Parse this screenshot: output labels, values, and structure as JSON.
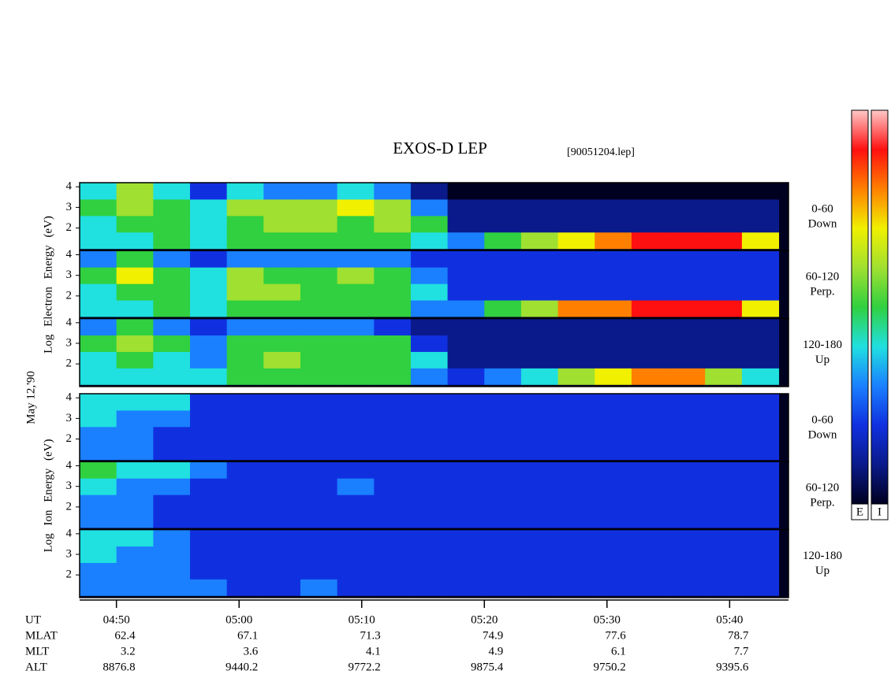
{
  "title": "EXOS-D LEP",
  "file_label": "[90051204.lep]",
  "date_label": "May 12,'90",
  "colorscale": [
    "#000020",
    "#0a1a8a",
    "#1030e0",
    "#1a80ff",
    "#20e0e0",
    "#30d040",
    "#a0e030",
    "#f0f000",
    "#ff8000",
    "#ff1010",
    "#ffc8c8"
  ],
  "colorbar_labels": [
    "E",
    "I"
  ],
  "chart_data": [
    {
      "type": "heatmap",
      "ylabel": "Log Electron Energy (eV)",
      "xlim": [
        47,
        104.8
      ],
      "ylim": [
        0.9,
        4.2
      ],
      "yticks": [
        2,
        3,
        4
      ],
      "x": [
        48.5,
        51.5,
        54.5,
        57.5,
        60.5,
        63.5,
        66.5,
        69.5,
        72.5,
        75.5,
        78.5,
        81.5,
        84.5,
        87.5,
        90.5,
        93.5,
        96.5,
        99.5,
        102.5
      ],
      "energy": [
        1.4,
        2.2,
        3.0,
        3.8
      ],
      "panels": [
        {
          "label": [
            "0-60",
            "Down"
          ],
          "z": [
            [
              4,
              4,
              5,
              4,
              5,
              5,
              5,
              5,
              5,
              4,
              3,
              5,
              6,
              7,
              8,
              9,
              9,
              9,
              7
            ],
            [
              4,
              5,
              5,
              4,
              5,
              6,
              6,
              5,
              6,
              5,
              1,
              1,
              1,
              1,
              1,
              1,
              1,
              1,
              1
            ],
            [
              5,
              6,
              5,
              4,
              6,
              6,
              6,
              7,
              6,
              3,
              1,
              1,
              1,
              1,
              1,
              1,
              1,
              1,
              1
            ],
            [
              4,
              6,
              4,
              2,
              4,
              3,
              3,
              4,
              3,
              1,
              0,
              0,
              0,
              0,
              0,
              0,
              0,
              0,
              0
            ]
          ]
        },
        {
          "label": [
            "60-120",
            "Perp."
          ],
          "z": [
            [
              4,
              4,
              5,
              4,
              5,
              5,
              5,
              5,
              5,
              3,
              3,
              5,
              6,
              8,
              8,
              9,
              9,
              9,
              7
            ],
            [
              4,
              5,
              5,
              4,
              6,
              6,
              5,
              5,
              5,
              4,
              2,
              2,
              2,
              2,
              2,
              2,
              2,
              2,
              2
            ],
            [
              5,
              7,
              5,
              4,
              6,
              5,
              5,
              6,
              5,
              3,
              2,
              2,
              2,
              2,
              2,
              2,
              2,
              2,
              2
            ],
            [
              3,
              5,
              3,
              2,
              3,
              3,
              3,
              3,
              3,
              2,
              2,
              2,
              2,
              2,
              2,
              2,
              2,
              2,
              2
            ]
          ]
        },
        {
          "label": [
            "120-180",
            "Up"
          ],
          "z": [
            [
              4,
              4,
              4,
              4,
              5,
              5,
              5,
              5,
              5,
              3,
              2,
              3,
              4,
              6,
              7,
              8,
              8,
              6,
              4
            ],
            [
              4,
              5,
              4,
              3,
              5,
              6,
              5,
              5,
              5,
              4,
              1,
              1,
              1,
              1,
              1,
              1,
              1,
              1,
              1
            ],
            [
              5,
              6,
              5,
              3,
              5,
              5,
              5,
              5,
              5,
              2,
              1,
              1,
              1,
              1,
              1,
              1,
              1,
              1,
              1
            ],
            [
              3,
              5,
              3,
              2,
              3,
              3,
              3,
              3,
              2,
              1,
              1,
              1,
              1,
              1,
              1,
              1,
              1,
              1,
              1
            ]
          ]
        }
      ]
    },
    {
      "type": "heatmap",
      "ylabel": "Log Ion Energy (eV)",
      "xlim": [
        47,
        104.8
      ],
      "ylim": [
        0.9,
        4.2
      ],
      "yticks": [
        2,
        3,
        4
      ],
      "xticks": [
        {
          "value": 50,
          "label": "04:50"
        },
        {
          "value": 60,
          "label": "05:00"
        },
        {
          "value": 70,
          "label": "05:10"
        },
        {
          "value": 80,
          "label": "05:20"
        },
        {
          "value": 90,
          "label": "05:30"
        },
        {
          "value": 100,
          "label": "05:40"
        }
      ],
      "x": [
        48.5,
        51.5,
        54.5,
        57.5,
        60.5,
        63.5,
        66.5,
        69.5,
        72.5,
        75.5,
        78.5,
        81.5,
        84.5,
        87.5,
        90.5,
        93.5,
        96.5,
        99.5,
        102.5
      ],
      "energy": [
        1.4,
        2.2,
        3.0,
        3.8
      ],
      "panels": [
        {
          "label": [
            "0-60",
            "Down"
          ],
          "z": [
            [
              3,
              3,
              2,
              2,
              2,
              2,
              2,
              2,
              2,
              2,
              2,
              2,
              2,
              2,
              2,
              2,
              2,
              2,
              2
            ],
            [
              3,
              3,
              2,
              2,
              2,
              2,
              2,
              2,
              2,
              2,
              2,
              2,
              2,
              2,
              2,
              2,
              2,
              2,
              2
            ],
            [
              4,
              3,
              3,
              2,
              2,
              2,
              2,
              2,
              2,
              2,
              2,
              2,
              2,
              2,
              2,
              2,
              2,
              2,
              2
            ],
            [
              4,
              4,
              4,
              2,
              2,
              2,
              2,
              2,
              2,
              2,
              2,
              2,
              2,
              2,
              2,
              2,
              2,
              2,
              2
            ]
          ]
        },
        {
          "label": [
            "60-120",
            "Perp."
          ],
          "z": [
            [
              3,
              3,
              2,
              2,
              2,
              2,
              2,
              2,
              2,
              2,
              2,
              2,
              2,
              2,
              2,
              2,
              2,
              2,
              2
            ],
            [
              3,
              3,
              2,
              2,
              2,
              2,
              2,
              2,
              2,
              2,
              2,
              2,
              2,
              2,
              2,
              2,
              2,
              2,
              2
            ],
            [
              4,
              3,
              3,
              2,
              2,
              2,
              2,
              3,
              2,
              2,
              2,
              2,
              2,
              2,
              2,
              2,
              2,
              2,
              2
            ],
            [
              5,
              4,
              4,
              3,
              2,
              2,
              2,
              2,
              2,
              2,
              2,
              2,
              2,
              2,
              2,
              2,
              2,
              2,
              2
            ]
          ]
        },
        {
          "label": [
            "120-180",
            "Up"
          ],
          "z": [
            [
              3,
              3,
              3,
              3,
              2,
              2,
              3,
              2,
              2,
              2,
              2,
              2,
              2,
              2,
              2,
              2,
              2,
              2,
              2
            ],
            [
              3,
              3,
              3,
              2,
              2,
              2,
              2,
              2,
              2,
              2,
              2,
              2,
              2,
              2,
              2,
              2,
              2,
              2,
              2
            ],
            [
              4,
              3,
              3,
              2,
              2,
              2,
              2,
              2,
              2,
              2,
              2,
              2,
              2,
              2,
              2,
              2,
              2,
              2,
              2
            ],
            [
              4,
              4,
              3,
              2,
              2,
              2,
              2,
              2,
              2,
              2,
              2,
              2,
              2,
              2,
              2,
              2,
              2,
              2,
              2
            ]
          ]
        }
      ]
    }
  ],
  "ephemeris": {
    "row_labels": [
      "UT",
      "MLAT",
      "MLT",
      "ALT"
    ],
    "rows": [
      [
        62.4,
        67.1,
        71.3,
        74.9,
        77.6,
        78.7
      ],
      [
        3.2,
        3.6,
        4.1,
        4.9,
        6.1,
        7.7
      ],
      [
        8876.8,
        9440.2,
        9772.2,
        9875.4,
        9750.2,
        9395.6
      ]
    ]
  }
}
